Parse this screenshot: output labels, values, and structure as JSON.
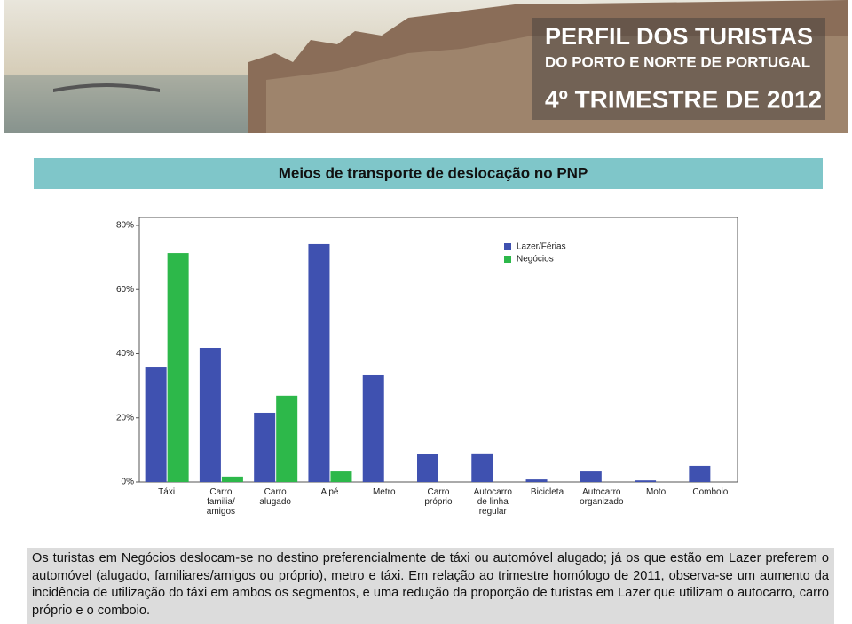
{
  "header": {
    "title": "PERFIL DOS TURISTAS",
    "subtitle": "DO PORTO E NORTE DE PORTUGAL",
    "period": "4º TRIMESTRE DE 2012"
  },
  "chart_data": {
    "type": "bar",
    "title": "Meios de transporte de deslocação no PNP",
    "categories": [
      "Táxi",
      "Carro\nfamilia/\namigos",
      "Carro\nalugado",
      "A pé",
      "Metro",
      "Carro\npróprio",
      "Autocarro\nde linha\nregular",
      "Bicicleta",
      "Autocarro\norganizado",
      "Moto",
      "Comboio"
    ],
    "series": [
      {
        "name": "Lazer/Férias",
        "color": "#3f51b0",
        "values": [
          35.7,
          41.8,
          21.6,
          74.2,
          33.5,
          8.6,
          8.9,
          0.8,
          3.3,
          0.5,
          5.0
        ]
      },
      {
        "name": "Negócios",
        "color": "#2db84a",
        "values": [
          71.4,
          1.7,
          26.9,
          3.3,
          0,
          0,
          0,
          0,
          0,
          0,
          0
        ]
      }
    ],
    "ylim": [
      0,
      80
    ],
    "yticks": [
      {
        "value": 0,
        "label": "0%"
      },
      {
        "value": 20,
        "label": "20%"
      },
      {
        "value": 40,
        "label": "40%"
      },
      {
        "value": 60,
        "label": "60%"
      },
      {
        "value": 80,
        "label": "80%"
      }
    ],
    "grid": false,
    "legend": "upper right"
  },
  "text": "Os turistas em Negócios deslocam-se no destino preferencialmente de táxi ou automóvel alugado; já os que estão em Lazer preferem o automóvel (alugado, familiares/amigos ou próprio), metro e táxi. Em relação ao trimestre homólogo de 2011, observa-se um aumento da incidência de utilização do táxi em ambos os segmentos, e uma redução da proporção de turistas em Lazer que utilizam o autocarro, carro próprio e o comboio."
}
